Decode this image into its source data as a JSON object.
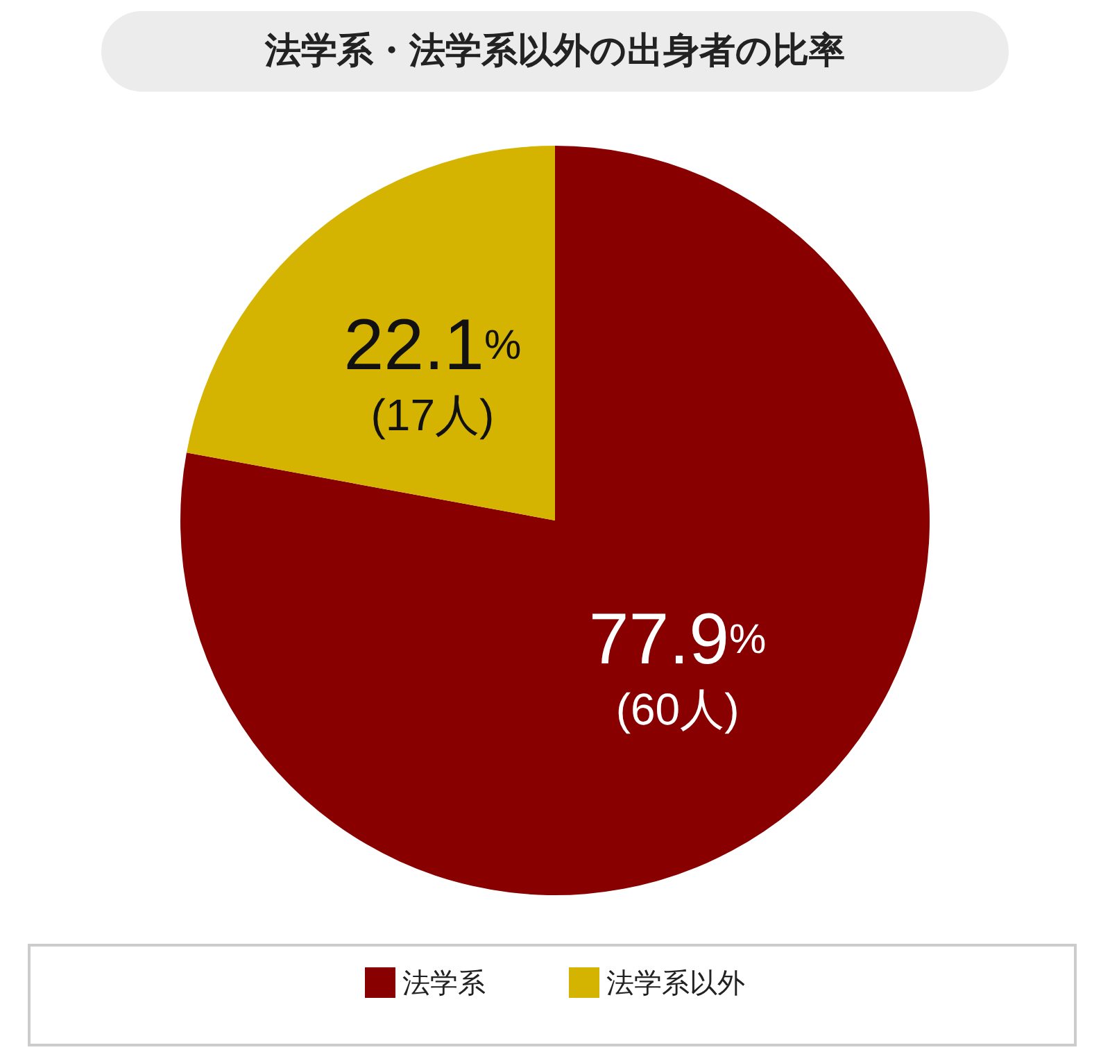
{
  "chart_data": {
    "type": "pie",
    "title": "法学系・法学系以外の出身者の比率",
    "categories": [
      "法学系",
      "法学系以外"
    ],
    "values": [
      77.9,
      22.1
    ],
    "colors": [
      "#880000",
      "#d4b400"
    ],
    "value_labels": [
      "77.9%\n(60人)",
      "22.1%\n(17人)"
    ],
    "legend": "bottom"
  }
}
